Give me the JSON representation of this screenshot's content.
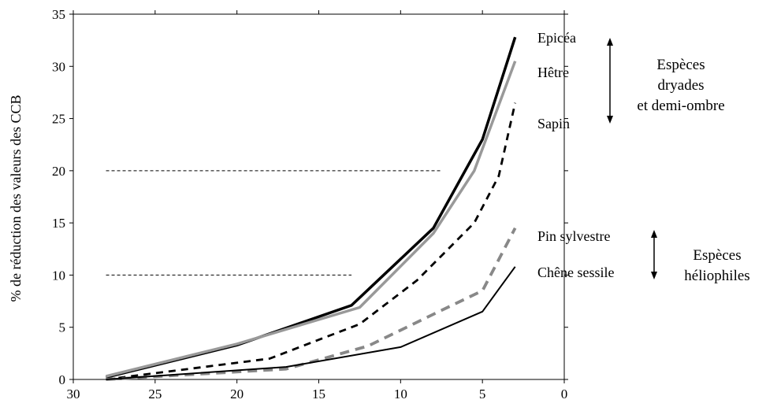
{
  "chart_data": {
    "type": "line",
    "title": "",
    "xlabel": "",
    "ylabel": "% de réduction des valeurs des CCB",
    "xlim": [
      30,
      0
    ],
    "ylim": [
      0,
      35
    ],
    "x_ticks": [
      30,
      25,
      20,
      15,
      10,
      5,
      0
    ],
    "y_ticks": [
      0,
      5,
      10,
      15,
      20,
      25,
      30,
      35
    ],
    "reference_lines": [
      {
        "y": 20,
        "x_from": 28,
        "x_to": 7.5
      },
      {
        "y": 10,
        "x_from": 28,
        "x_to": 13
      }
    ],
    "series": [
      {
        "name": "Epicéa",
        "color": "#000000",
        "style": "solid-thick",
        "points": [
          [
            28,
            0.2
          ],
          [
            20,
            3.3
          ],
          [
            13,
            7.1
          ],
          [
            8,
            14.5
          ],
          [
            5,
            23.0
          ],
          [
            3,
            32.8
          ]
        ]
      },
      {
        "name": "Hêtre",
        "color": "#999999",
        "style": "solid-thick",
        "points": [
          [
            28,
            0.3
          ],
          [
            20,
            3.4
          ],
          [
            12.5,
            6.9
          ],
          [
            8,
            14.0
          ],
          [
            5.5,
            20.0
          ],
          [
            3,
            30.5
          ]
        ]
      },
      {
        "name": "Sapin",
        "color": "#000000",
        "style": "dashed",
        "points": [
          [
            28,
            0.0
          ],
          [
            18,
            2.0
          ],
          [
            12.5,
            5.3
          ],
          [
            9,
            9.5
          ],
          [
            5.5,
            15.0
          ],
          [
            4,
            19.5
          ],
          [
            3,
            26.5
          ]
        ]
      },
      {
        "name": "Pin sylvestre",
        "color": "#888888",
        "style": "dashed-thick",
        "points": [
          [
            28,
            0.0
          ],
          [
            17,
            1.0
          ],
          [
            12,
            3.2
          ],
          [
            7,
            7.0
          ],
          [
            5,
            8.5
          ],
          [
            3,
            14.5
          ]
        ]
      },
      {
        "name": "Chêne sessile",
        "color": "#000000",
        "style": "solid-thin",
        "points": [
          [
            28,
            0.0
          ],
          [
            17,
            1.2
          ],
          [
            10,
            3.1
          ],
          [
            5,
            6.5
          ],
          [
            3,
            10.8
          ]
        ]
      }
    ],
    "groups": [
      {
        "label_lines": [
          "Espèces",
          "dryades",
          "et demi-ombre"
        ],
        "series": [
          "Epicéa",
          "Hêtre",
          "Sapin"
        ]
      },
      {
        "label_lines": [
          "Espèces",
          "héliophiles"
        ],
        "series": [
          "Pin sylvestre",
          "Chêne sessile"
        ]
      }
    ]
  }
}
